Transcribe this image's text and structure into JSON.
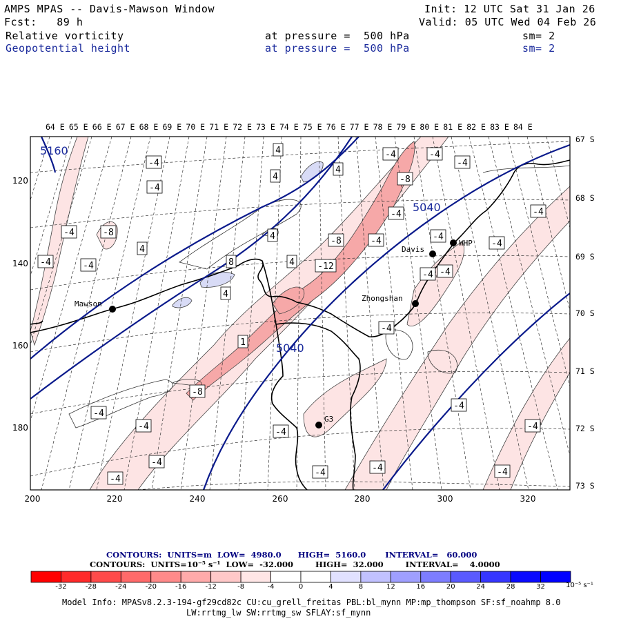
{
  "header": {
    "title": "AMPS MPAS -- Davis-Mawson Window",
    "fcst": "Fcst:   89 h",
    "init": "Init: 12 UTC Sat 31 Jan 26",
    "valid": "Valid: 05 UTC Wed 04 Feb 26",
    "field1": {
      "name": "Relative vorticity",
      "pressure": "at pressure =  500 hPa",
      "sm": "sm= 2"
    },
    "field2": {
      "name": "Geopotential height",
      "pressure": "at pressure =  500 hPa",
      "sm": "sm= 2"
    }
  },
  "map": {
    "lon_labels": [
      "64 E",
      "65 E",
      "66 E",
      "67 E",
      "68 E",
      "69 E",
      "70 E",
      "71 E",
      "72 E",
      "73 E",
      "74 E",
      "75 E",
      "76 E",
      "77 E",
      "78 E",
      "79 E",
      "80 E",
      "81 E",
      "82 E",
      "83 E",
      "84 E"
    ],
    "lat_labels": [
      "67 S",
      "68 S",
      "69 S",
      "70 S",
      "71 S",
      "72 S",
      "73 S"
    ],
    "x_ticks": [
      "200",
      "220",
      "240",
      "260",
      "280",
      "300",
      "320"
    ],
    "y_ticks": [
      "120",
      "140",
      "160",
      "180"
    ],
    "stations": [
      {
        "name": "Mawson"
      },
      {
        "name": "Davis"
      },
      {
        "name": "WHP"
      },
      {
        "name": "Zhongshan"
      },
      {
        "name": "G3"
      }
    ],
    "height_labels": [
      "5160",
      "5040",
      "5040"
    ],
    "vort_labels": [
      "-4",
      "-4",
      "-4",
      "-4",
      "-4",
      "-4",
      "-4",
      "-4",
      "-4",
      "-4",
      "-4",
      "-4",
      "-4",
      "-4",
      "-4",
      "-4",
      "-4",
      "-4",
      "-4",
      "-4",
      "-4",
      "-4",
      "-4",
      "-4",
      "-4",
      "-4",
      "-8",
      "-8",
      "-8",
      "-8",
      "-12",
      "4",
      "4",
      "4",
      "4",
      "4",
      "4",
      "4",
      "8",
      "1"
    ],
    "colors": {
      "geopotential": "#0a1a8c",
      "coast": "#000000",
      "vort_pos_light": "#fde1e1",
      "vort_pos_mid": "#f7a6a6",
      "vort_neg": "#d7daf5"
    }
  },
  "footer": {
    "contours1": "CONTOURS:  UNITS=m  LOW=  4980.0      HIGH=  5160.0       INTERVAL=   60.000",
    "contours2": "CONTOURS:  UNITS=10⁻⁵ s⁻¹  LOW=  -32.000        HIGH=  32.000        INTERVAL=    4.0000",
    "colorbar": {
      "values": [
        "-32",
        "-28",
        "-24",
        "-20",
        "-16",
        "-12",
        "-8",
        "-4",
        "0",
        "4",
        "8",
        "12",
        "16",
        "20",
        "24",
        "28",
        "32"
      ],
      "colors": [
        "#ff0000",
        "#ff2a2a",
        "#ff4a4a",
        "#ff6a6a",
        "#ff8a8a",
        "#ffaaaa",
        "#ffc8c8",
        "#ffe6e6",
        "#ffffff",
        "#ffffff",
        "#e1e1ff",
        "#c1c1ff",
        "#9f9fff",
        "#7d7dff",
        "#5a5aff",
        "#3636ff",
        "#0a0aff",
        "#0000ff"
      ],
      "unit": "10⁻⁵ s⁻¹"
    },
    "model_info": "Model Info: MPASv8.2.3-194-gf29cd82c CU:cu_grell_freitas PBL:bl_mynn MP:mp_thompson SF:sf_noahmp 8.0",
    "model_info2": "LW:rrtmg_lw SW:rrtmg_sw SFLAY:sf_mynn"
  }
}
